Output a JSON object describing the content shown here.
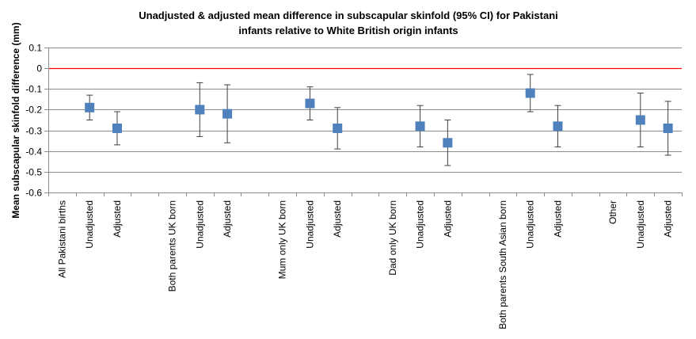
{
  "chart_data": {
    "type": "scatter",
    "title_line1": "Unadjusted & adjusted mean difference in subscapular skinfold (95% CI) for Pakistani",
    "title_line2": "infants relative to White British origin infants",
    "ylabel": "Mean subscapular  skinfold difference (mm)",
    "xlabel": "",
    "ylim": [
      -0.6,
      0.1
    ],
    "yticks": [
      0.1,
      0,
      -0.1,
      -0.2,
      -0.3,
      -0.4,
      -0.5,
      -0.6
    ],
    "ytick_labels": [
      "0.1",
      "0",
      "-0.1",
      "-0.2",
      "-0.3",
      "-0.4",
      "-0.5",
      "-0.6"
    ],
    "grid": true,
    "reference_line": {
      "y": 0,
      "color": "#ff0000"
    },
    "marker_color": "#4f81bd",
    "categories": [
      "All Pakistani births",
      "Unadjusted",
      "Adjusted",
      "",
      "Both parents UK born",
      "Unadjusted",
      "Adjusted",
      "",
      "Mum only UK born",
      "Unadjusted",
      "Adjusted",
      "",
      "Dad only UK born",
      "Unadjusted",
      "Adjusted",
      "",
      "Both parents South Asian born",
      "Unadjusted",
      "Adjusted",
      "",
      "Other",
      "Unadjusted",
      "Adjusted"
    ],
    "points": [
      {
        "category_index": 1,
        "y": -0.19,
        "lower": -0.25,
        "upper": -0.13
      },
      {
        "category_index": 2,
        "y": -0.29,
        "lower": -0.37,
        "upper": -0.21
      },
      {
        "category_index": 5,
        "y": -0.2,
        "lower": -0.33,
        "upper": -0.07
      },
      {
        "category_index": 6,
        "y": -0.22,
        "lower": -0.36,
        "upper": -0.08
      },
      {
        "category_index": 9,
        "y": -0.17,
        "lower": -0.25,
        "upper": -0.09
      },
      {
        "category_index": 10,
        "y": -0.29,
        "lower": -0.39,
        "upper": -0.19
      },
      {
        "category_index": 13,
        "y": -0.28,
        "lower": -0.38,
        "upper": -0.18
      },
      {
        "category_index": 14,
        "y": -0.36,
        "lower": -0.47,
        "upper": -0.25
      },
      {
        "category_index": 17,
        "y": -0.12,
        "lower": -0.21,
        "upper": -0.03
      },
      {
        "category_index": 18,
        "y": -0.28,
        "lower": -0.38,
        "upper": -0.18
      },
      {
        "category_index": 21,
        "y": -0.25,
        "lower": -0.38,
        "upper": -0.12
      },
      {
        "category_index": 22,
        "y": -0.29,
        "lower": -0.42,
        "upper": -0.16
      }
    ]
  }
}
